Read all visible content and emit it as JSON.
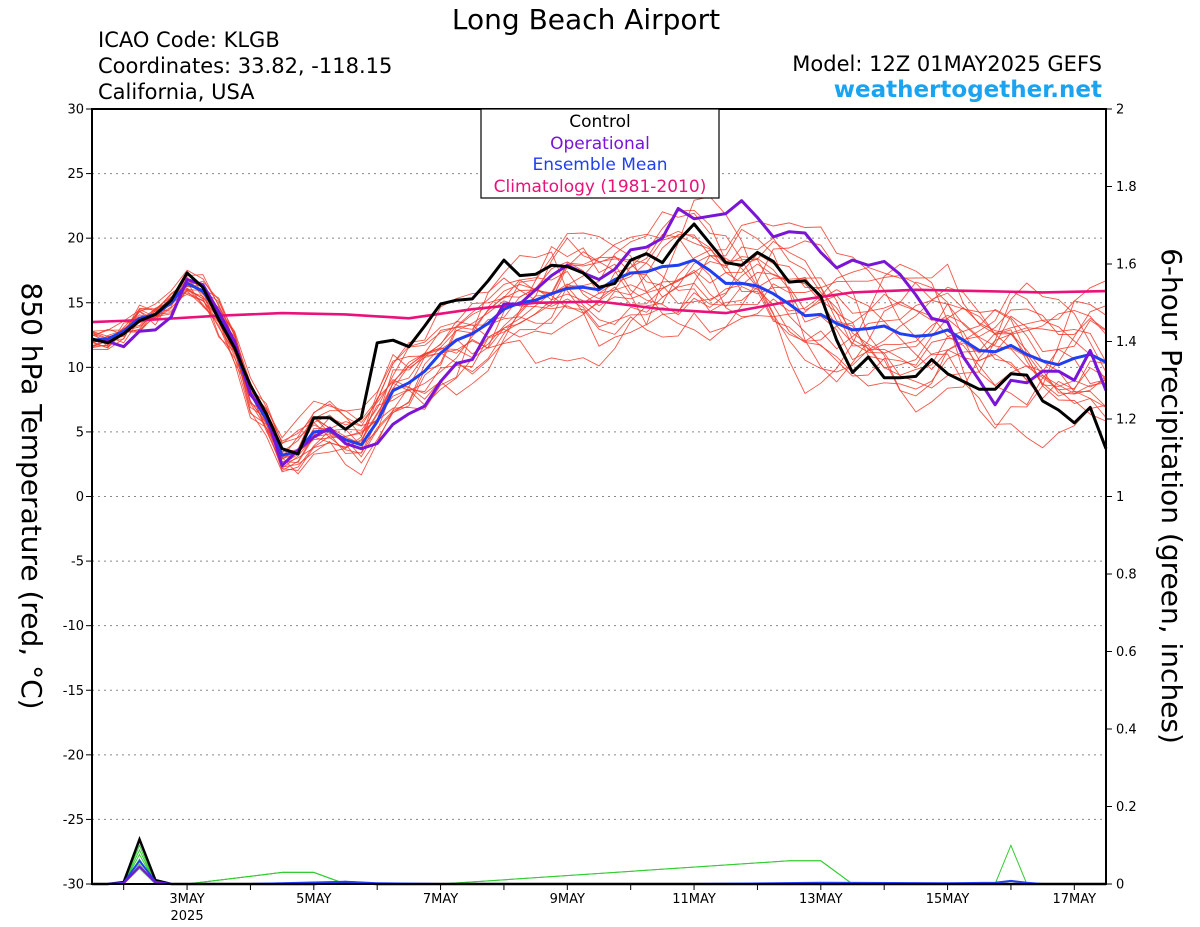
{
  "header": {
    "title": "Long Beach Airport",
    "icao": "ICAO Code: KLGB",
    "coordinates": "Coordinates: 33.82, -118.15",
    "location": "California, USA",
    "model": "Model: 12Z 01MAY2025 GEFS",
    "site": "weathertogether.net"
  },
  "colors": {
    "control": "#000000",
    "operational": "#7a14d6",
    "ensemble_mean": "#1f3ff0",
    "climatology": "#e8127a",
    "members": "#f03a2a",
    "precip": "#33cc33",
    "site": "#1aa3f0"
  },
  "chart_data": {
    "type": "line",
    "ylabel": "850 hPa Temperature (red, °C)",
    "y2label": "6-hour Precipitation (green, inches)",
    "ylim": [
      -30,
      30
    ],
    "y2lim": [
      0,
      2
    ],
    "yticks": [
      30,
      25,
      20,
      15,
      10,
      5,
      0,
      -5,
      -10,
      -15,
      -20,
      -25,
      -30
    ],
    "y2ticks": [
      "2",
      "1.8",
      "1.6",
      "1.4",
      "1.2",
      "1",
      "0.8",
      "0.6",
      "0.4",
      "0.2",
      "0"
    ],
    "xlim": [
      1.5,
      17.5
    ],
    "xticks": [
      {
        "x": 3,
        "label": "3MAY",
        "sublabel": "2025"
      },
      {
        "x": 5,
        "label": "5MAY"
      },
      {
        "x": 7,
        "label": "7MAY"
      },
      {
        "x": 9,
        "label": "9MAY"
      },
      {
        "x": 11,
        "label": "11MAY"
      },
      {
        "x": 13,
        "label": "13MAY"
      },
      {
        "x": 15,
        "label": "15MAY"
      },
      {
        "x": 17,
        "label": "17MAY"
      }
    ],
    "grid": "dotted horizontal",
    "legend": {
      "position": "top-center",
      "items": [
        {
          "label": "Control",
          "color": "#000000"
        },
        {
          "label": "Operational",
          "color": "#7a14d6"
        },
        {
          "label": "Ensemble Mean",
          "color": "#1f3ff0"
        },
        {
          "label": "Climatology (1981-2010)",
          "color": "#e8127a"
        }
      ]
    },
    "series": [
      {
        "name": "Control",
        "role": "control",
        "x": [
          1.5,
          1.75,
          2.0,
          2.25,
          2.5,
          2.75,
          3.0,
          3.25,
          3.5,
          3.75,
          4.0,
          4.25,
          4.5,
          4.75,
          5.0,
          5.25,
          5.5,
          5.75,
          6.0,
          6.25,
          6.5,
          6.75,
          7.0,
          7.25,
          7.5,
          7.75,
          8.0,
          8.25,
          8.5,
          8.75,
          9.0,
          9.25,
          9.5,
          9.75,
          10.0,
          10.25,
          10.5,
          10.75,
          11.0,
          11.25,
          11.5,
          11.75,
          12.0,
          12.25,
          12.5,
          12.75,
          13.0,
          13.25,
          13.5,
          13.75,
          14.0,
          14.25,
          14.5,
          14.75,
          15.0,
          15.25,
          15.5,
          15.75,
          16.0,
          16.25,
          16.5,
          16.75,
          17.0,
          17.25,
          17.5
        ],
        "y": [
          12.2,
          11.9,
          12.6,
          13.6,
          14.1,
          15.2,
          17.3,
          16.2,
          13.7,
          11.5,
          8.6,
          6.4,
          3.7,
          3.3,
          6.1,
          6.1,
          5.2,
          6.1,
          11.9,
          12.1,
          11.6,
          13.2,
          14.9,
          15.2,
          15.3,
          16.7,
          18.3,
          17.1,
          17.2,
          17.9,
          17.8,
          17.3,
          16.2,
          16.5,
          18.3,
          18.8,
          18.1,
          19.8,
          21.1,
          19.6,
          18.1,
          17.9,
          18.9,
          18.2,
          16.6,
          16.7,
          15.5,
          12.1,
          9.6,
          10.8,
          9.2,
          9.2,
          9.3,
          10.6,
          9.5,
          8.9,
          8.3,
          8.3,
          9.5,
          9.4,
          7.4,
          6.7,
          5.7,
          6.9,
          3.7
        ]
      },
      {
        "name": "Operational",
        "role": "operational",
        "x": [
          1.5,
          1.75,
          2.0,
          2.25,
          2.5,
          2.75,
          3.0,
          3.25,
          3.5,
          3.75,
          4.0,
          4.25,
          4.5,
          4.75,
          5.0,
          5.25,
          5.5,
          5.75,
          6.0,
          6.25,
          6.5,
          6.75,
          7.0,
          7.25,
          7.5,
          7.75,
          8.0,
          8.25,
          8.5,
          8.75,
          9.0,
          9.25,
          9.5,
          9.75,
          10.0,
          10.25,
          10.5,
          10.75,
          11.0,
          11.25,
          11.5,
          11.75,
          12.0,
          12.25,
          12.5,
          12.75,
          13.0,
          13.25,
          13.5,
          13.75,
          14.0,
          14.25,
          14.5,
          14.75,
          15.0,
          15.25,
          15.5,
          15.75,
          16.0,
          16.25,
          16.5,
          16.75,
          17.0,
          17.25,
          17.5
        ],
        "y": [
          12.1,
          12.0,
          11.6,
          12.8,
          12.9,
          13.9,
          16.8,
          16.4,
          14.3,
          12.0,
          7.9,
          6.4,
          2.4,
          3.6,
          4.6,
          5.3,
          4.1,
          3.7,
          4.1,
          5.6,
          6.4,
          7.0,
          8.9,
          10.3,
          10.6,
          12.8,
          14.9,
          14.9,
          16.0,
          17.1,
          17.9,
          17.3,
          16.8,
          17.6,
          19.1,
          19.3,
          20.0,
          22.3,
          21.5,
          21.7,
          21.9,
          22.9,
          21.6,
          20.1,
          20.5,
          20.4,
          18.9,
          17.7,
          18.3,
          17.9,
          18.2,
          17.2,
          15.6,
          13.8,
          13.5,
          10.8,
          9.0,
          7.1,
          9.0,
          8.8,
          9.7,
          9.7,
          9.0,
          11.3,
          8.2
        ]
      },
      {
        "name": "Ensemble Mean",
        "role": "ensemble_mean",
        "x": [
          1.5,
          1.75,
          2.0,
          2.25,
          2.5,
          2.75,
          3.0,
          3.25,
          3.5,
          3.75,
          4.0,
          4.25,
          4.5,
          4.75,
          5.0,
          5.25,
          5.5,
          5.75,
          6.0,
          6.25,
          6.5,
          6.75,
          7.0,
          7.25,
          7.5,
          7.75,
          8.0,
          8.25,
          8.5,
          8.75,
          9.0,
          9.25,
          9.5,
          9.75,
          10.0,
          10.25,
          10.5,
          10.75,
          11.0,
          11.25,
          11.5,
          11.75,
          12.0,
          12.25,
          12.5,
          12.75,
          13.0,
          13.25,
          13.5,
          13.75,
          14.0,
          14.25,
          14.5,
          14.75,
          15.0,
          15.25,
          15.5,
          15.75,
          16.0,
          16.25,
          16.5,
          16.75,
          17.0,
          17.25,
          17.5
        ],
        "y": [
          12.1,
          12.2,
          12.8,
          13.8,
          14.1,
          15.0,
          16.5,
          15.9,
          14.1,
          11.6,
          8.0,
          6.0,
          3.2,
          3.5,
          5.0,
          5.1,
          4.4,
          4.0,
          5.8,
          8.2,
          8.8,
          9.7,
          11.1,
          12.1,
          12.6,
          13.4,
          14.5,
          15.0,
          15.2,
          15.7,
          16.1,
          16.2,
          16.0,
          16.8,
          17.3,
          17.4,
          17.8,
          17.9,
          18.3,
          17.5,
          16.5,
          16.5,
          16.3,
          15.7,
          14.9,
          14.0,
          14.1,
          13.4,
          12.9,
          13.0,
          13.2,
          12.6,
          12.4,
          12.5,
          12.9,
          12.1,
          11.3,
          11.2,
          11.7,
          11.0,
          10.5,
          10.2,
          10.7,
          11.0,
          10.4
        ]
      },
      {
        "name": "Climatology (1981-2010)",
        "role": "climatology",
        "x": [
          1.5,
          2.5,
          3.5,
          4.5,
          5.5,
          6.5,
          7.5,
          8.5,
          9.5,
          10.5,
          11.5,
          12.5,
          13.5,
          14.5,
          15.5,
          16.5,
          17.5
        ],
        "y": [
          13.5,
          13.7,
          14.0,
          14.2,
          14.1,
          13.8,
          14.5,
          15.0,
          15.1,
          14.5,
          14.2,
          15.1,
          15.8,
          16.0,
          15.9,
          15.8,
          15.9
        ]
      }
    ],
    "precip_series": [
      {
        "name": "Control",
        "role": "control",
        "x": [
          1.5,
          1.75,
          2.0,
          2.25,
          2.5,
          2.75,
          3.0,
          3.5,
          4.0,
          4.5,
          5.0,
          5.5,
          6.0,
          6.5,
          7.0,
          8.0,
          9.0,
          10.0,
          11.0,
          12.0,
          13.0,
          14.0,
          15.0,
          15.5,
          15.75,
          16.0,
          16.25,
          16.5,
          17.0,
          17.5
        ],
        "y": [
          0,
          0,
          0.005,
          0.115,
          0.01,
          0,
          0,
          0,
          0,
          0,
          0,
          0.005,
          0,
          0,
          0,
          0,
          0,
          0,
          0,
          0,
          0,
          0,
          0,
          0,
          0,
          0,
          0,
          0,
          0,
          0
        ]
      },
      {
        "name": "Ensemble Mean",
        "role": "ensemble_mean",
        "x": [
          1.5,
          1.75,
          2.0,
          2.25,
          2.5,
          2.75,
          3.0,
          4.0,
          5.0,
          5.5,
          6.0,
          7.0,
          9.0,
          11.0,
          13.0,
          15.0,
          15.75,
          16.0,
          16.25,
          16.5,
          17.0,
          17.5
        ],
        "y": [
          0,
          0,
          0.003,
          0.06,
          0.006,
          0,
          0,
          0,
          0.004,
          0.006,
          0.002,
          0,
          0,
          0,
          0.003,
          0.002,
          0.003,
          0.008,
          0.003,
          0,
          0,
          0
        ]
      },
      {
        "name": "Operational",
        "role": "operational",
        "x": [
          1.5,
          1.75,
          2.0,
          2.25,
          2.5,
          2.75,
          3.0,
          4.0,
          5.0,
          6.0,
          7.0,
          9.0,
          11.0,
          13.0,
          15.0,
          16.0,
          17.0,
          17.5
        ],
        "y": [
          0,
          0,
          0.002,
          0.045,
          0.004,
          0,
          0,
          0,
          0,
          0,
          0,
          0,
          0,
          0,
          0,
          0,
          0,
          0
        ]
      }
    ]
  }
}
